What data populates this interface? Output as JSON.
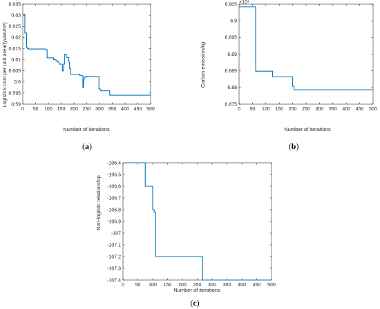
{
  "colors": {
    "line": "#0072BD",
    "axis": "#262626"
  },
  "chart_data": [
    {
      "type": "line",
      "panel_label": "(a)",
      "xlabel": "Number of iterations",
      "ylabel": "Logistics cost per unit area/(yuan/m²)",
      "xlim": [
        0,
        500
      ],
      "ylim": [
        0.59,
        0.635
      ],
      "xticks": [
        0,
        50,
        100,
        150,
        200,
        250,
        300,
        350,
        400,
        450,
        500
      ],
      "yticks": [
        0.59,
        0.595,
        0.6,
        0.605,
        0.61,
        0.615,
        0.62,
        0.625,
        0.63,
        0.635
      ],
      "ytick_labels": [
        "0.59",
        "0.595",
        "0.6",
        "0.605",
        "0.61",
        "0.615",
        "0.62",
        "0.625",
        "0.63",
        "0.635"
      ],
      "exponent_label": "",
      "grid": false,
      "series": [
        {
          "x": [
            0,
            8,
            8,
            15,
            15,
            18,
            18,
            22,
            22,
            90,
            90,
            95,
            95,
            97,
            97,
            120,
            120,
            130,
            130,
            135,
            135,
            142,
            142,
            155,
            155,
            160,
            160,
            163,
            163,
            166,
            166,
            170,
            170,
            180,
            180,
            183,
            183,
            187,
            187,
            222,
            222,
            228,
            228,
            235,
            235,
            238,
            238,
            240,
            240,
            243,
            243,
            248,
            248,
            255,
            255,
            272,
            272,
            298,
            298,
            300,
            300,
            305,
            305,
            340,
            340,
            500
          ],
          "y": [
            0.6305,
            0.6305,
            0.622,
            0.622,
            0.6155,
            0.6155,
            0.615,
            0.615,
            0.6148,
            0.6148,
            0.6145,
            0.6145,
            0.611,
            0.611,
            0.6108,
            0.6108,
            0.61,
            0.61,
            0.6095,
            0.6095,
            0.609,
            0.609,
            0.608,
            0.608,
            0.605,
            0.605,
            0.608,
            0.608,
            0.6125,
            0.6125,
            0.6125,
            0.6125,
            0.611,
            0.611,
            0.609,
            0.609,
            0.606,
            0.606,
            0.6035,
            0.6035,
            0.603,
            0.603,
            0.6028,
            0.6028,
            0.5975,
            0.5975,
            0.601,
            0.601,
            0.602,
            0.602,
            0.6022,
            0.6022,
            0.6025,
            0.6025,
            0.6024,
            0.6024,
            0.6024,
            0.6024,
            0.597,
            0.597,
            0.5965,
            0.5965,
            0.596,
            0.596,
            0.594,
            0.594
          ]
        }
      ]
    },
    {
      "type": "line",
      "panel_label": "(b)",
      "xlabel": "Number of iterations",
      "ylabel": "Carbon emission/kg",
      "xlim": [
        0,
        500
      ],
      "ylim": [
        68750,
        69050
      ],
      "xticks": [
        0,
        50,
        100,
        150,
        200,
        250,
        300,
        350,
        400,
        450,
        500
      ],
      "yticks": [
        68750,
        68800,
        68850,
        68900,
        68950,
        69000,
        69050
      ],
      "ytick_labels": [
        "6.875",
        "6.88",
        "6.885",
        "6.89",
        "6.895",
        "6.9",
        "6.905"
      ],
      "exponent_label": "×10⁴",
      "grid": false,
      "series": [
        {
          "x": [
            0,
            62,
            62,
            125,
            125,
            200,
            200,
            205,
            205,
            500
          ],
          "y": [
            69042,
            69042,
            68849,
            68849,
            68832,
            68832,
            68804,
            68804,
            68793,
            68793
          ]
        }
      ]
    },
    {
      "type": "line",
      "panel_label": "(c)",
      "xlabel": "Number of iterations",
      "ylabel": "Non-logistic relationship",
      "xlim": [
        0,
        500
      ],
      "ylim": [
        -107.4,
        -106.4
      ],
      "xticks": [
        0,
        50,
        100,
        150,
        200,
        250,
        300,
        350,
        400,
        450,
        500
      ],
      "yticks": [
        -107.4,
        -107.3,
        -107.2,
        -107.1,
        -107,
        -106.9,
        -106.8,
        -106.7,
        -106.6,
        -106.5,
        -106.4
      ],
      "ytick_labels": [
        "-107.4",
        "-107.3",
        "-107.2",
        "-107.1",
        "-107",
        "-106.9",
        "-106.8",
        "-106.7",
        "-106.6",
        "-106.5",
        "-106.4"
      ],
      "exponent_label": "",
      "grid": false,
      "series": [
        {
          "x": [
            0,
            75,
            75,
            100,
            100,
            105,
            105,
            110,
            110,
            268,
            268,
            500
          ],
          "y": [
            -106.4,
            -106.4,
            -106.6,
            -106.6,
            -106.8,
            -106.8,
            -106.82,
            -106.82,
            -107.2,
            -107.2,
            -107.4,
            -107.4
          ]
        }
      ]
    }
  ]
}
